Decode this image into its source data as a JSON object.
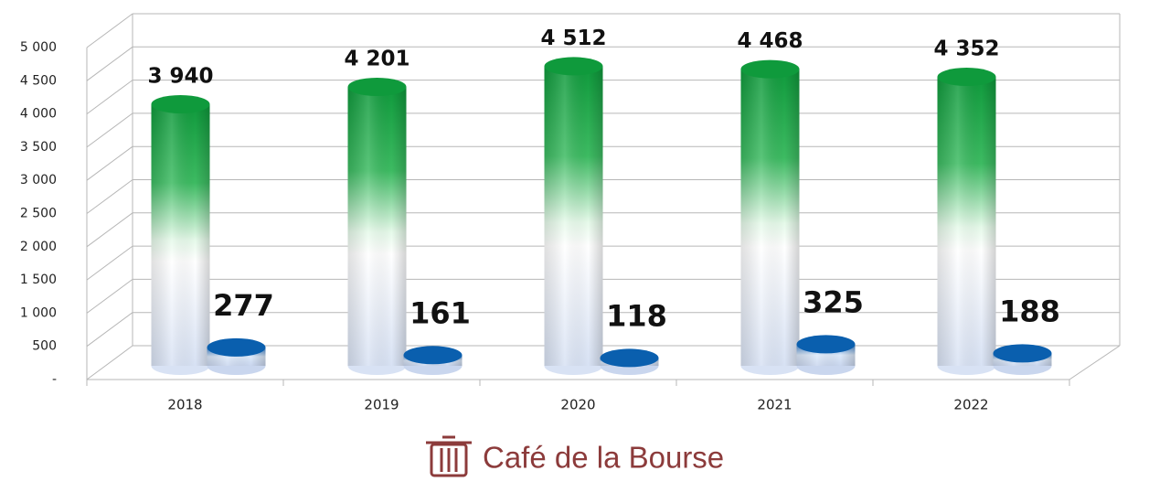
{
  "chart_data": {
    "type": "bar3d",
    "categories": [
      "2018",
      "2019",
      "2020",
      "2021",
      "2022"
    ],
    "series": [
      {
        "color": "#0f9a3c",
        "values": [
          3940,
          4201,
          4512,
          4468,
          4352
        ],
        "value_labels": [
          "3 940",
          "4 201",
          "4 512",
          "4 468",
          "4 352"
        ]
      },
      {
        "color": "#0a5fae",
        "values": [
          277,
          161,
          118,
          325,
          188
        ]
      }
    ],
    "ylim": [
      0,
      5000
    ],
    "yticks": [
      {
        "value": 0,
        "label": "-"
      },
      500,
      {
        "value": 1000,
        "label": "1 000"
      },
      {
        "value": 1500,
        "label": "1 500"
      },
      {
        "value": 2000,
        "label": "2 000"
      },
      {
        "value": 2500,
        "label": "2 500"
      },
      {
        "value": 3000,
        "label": "3 000"
      },
      {
        "value": 3500,
        "label": "3 500"
      },
      {
        "value": 4000,
        "label": "4 000"
      },
      {
        "value": 4500,
        "label": "4 500"
      },
      {
        "value": 5000,
        "label": "5 000"
      }
    ],
    "grid": true,
    "watermark": "Café de la Bourse"
  }
}
